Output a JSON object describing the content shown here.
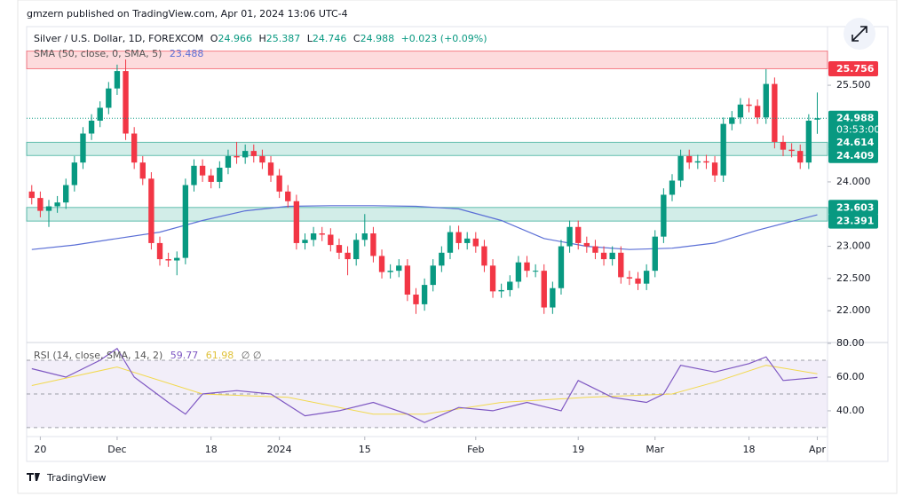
{
  "header": {
    "published": "gmzern published on TradingView.com, Apr 01, 2024 13:06 UTC-4",
    "symbol": "Silver / U.S. Dollar, 1D, FOREXCOM",
    "ohlc_prefixes": [
      "O",
      "H",
      "L",
      "C"
    ],
    "change": "+0.023 (+0.09%)",
    "sma_title": "SMA (50, close, 0, SMA, 5)",
    "rsi_title": "RSI (14, close, SMA, 14, 2)",
    "rsi_extra": "∅ ∅"
  },
  "footer": {
    "brand": "TradingView"
  },
  "chart_data": {
    "type": "candlestick",
    "open": [
      23.85,
      23.75,
      23.55,
      23.62,
      23.68,
      23.95,
      24.3,
      24.75,
      24.95,
      25.15,
      25.45,
      25.72,
      24.75,
      24.3,
      24.05,
      23.05,
      22.8,
      22.78,
      22.82,
      23.95,
      24.25,
      24.1,
      24.0,
      24.22,
      24.4,
      24.38,
      24.48,
      24.4,
      24.3,
      24.1,
      23.85,
      23.7,
      23.05,
      23.1,
      23.2,
      23.18,
      23.02,
      22.9,
      22.8,
      23.1,
      23.2,
      22.85,
      22.6,
      22.62,
      22.7,
      22.25,
      22.1,
      22.4,
      22.7,
      22.9,
      23.22,
      23.05,
      23.12,
      23.0,
      22.7,
      22.3,
      22.32,
      22.45,
      22.75,
      22.62,
      22.62,
      22.05,
      22.35,
      23.0,
      23.3,
      23.05,
      23.0,
      22.9,
      22.8,
      22.9,
      22.52,
      22.5,
      22.42,
      22.62,
      23.15,
      23.8,
      24.02,
      24.4,
      24.3,
      24.32,
      24.3,
      24.1,
      24.9,
      25.0,
      25.2,
      25.18,
      25.0,
      25.52,
      24.62,
      24.5,
      24.48,
      24.3,
      24.966
    ],
    "high": [
      23.95,
      23.85,
      23.72,
      23.78,
      24.05,
      24.4,
      24.85,
      25.05,
      25.25,
      25.55,
      25.82,
      25.9,
      24.85,
      24.4,
      24.15,
      23.15,
      22.9,
      22.92,
      24.05,
      24.35,
      24.35,
      24.2,
      24.32,
      24.5,
      24.62,
      24.58,
      24.58,
      24.5,
      24.4,
      24.2,
      23.95,
      23.8,
      23.2,
      23.3,
      23.3,
      23.28,
      23.12,
      23.0,
      23.2,
      23.5,
      23.3,
      22.95,
      22.72,
      22.8,
      22.8,
      22.35,
      22.5,
      22.8,
      23.0,
      23.32,
      23.32,
      23.22,
      23.22,
      23.1,
      22.8,
      22.42,
      22.55,
      22.85,
      22.85,
      22.72,
      22.72,
      22.45,
      23.1,
      23.4,
      23.4,
      23.15,
      23.1,
      23.0,
      23.0,
      23.0,
      22.62,
      22.6,
      22.72,
      23.25,
      23.9,
      24.12,
      24.5,
      24.5,
      24.42,
      24.42,
      24.4,
      25.0,
      25.1,
      25.3,
      25.3,
      25.28,
      25.75,
      25.62,
      24.72,
      24.6,
      24.58,
      25.05,
      25.387
    ],
    "low": [
      23.65,
      23.45,
      23.3,
      23.52,
      23.58,
      23.85,
      24.2,
      24.65,
      24.85,
      25.05,
      25.35,
      24.65,
      24.2,
      23.95,
      22.95,
      22.7,
      22.68,
      22.55,
      22.72,
      23.85,
      24.0,
      23.9,
      23.9,
      24.12,
      24.28,
      24.28,
      24.3,
      24.2,
      24.0,
      23.75,
      23.6,
      22.95,
      22.95,
      23.0,
      23.08,
      22.92,
      22.8,
      22.55,
      22.7,
      23.0,
      22.75,
      22.5,
      22.5,
      22.52,
      22.15,
      21.95,
      22.0,
      22.3,
      22.6,
      22.8,
      22.95,
      22.95,
      22.9,
      22.6,
      22.2,
      22.2,
      22.22,
      22.35,
      22.52,
      22.52,
      21.95,
      21.95,
      22.25,
      22.9,
      22.95,
      22.9,
      22.8,
      22.7,
      22.7,
      22.42,
      22.4,
      22.32,
      22.32,
      22.52,
      23.05,
      23.7,
      23.92,
      24.2,
      24.2,
      24.2,
      24.0,
      24.0,
      24.8,
      24.9,
      25.08,
      24.9,
      24.9,
      24.52,
      24.4,
      24.38,
      24.2,
      24.2,
      24.746
    ],
    "close": [
      23.75,
      23.55,
      23.62,
      23.68,
      23.95,
      24.3,
      24.75,
      24.95,
      25.15,
      25.45,
      25.72,
      24.75,
      24.3,
      24.05,
      23.05,
      22.8,
      22.78,
      22.82,
      23.95,
      24.25,
      24.1,
      24.0,
      24.22,
      24.4,
      24.38,
      24.48,
      24.4,
      24.3,
      24.1,
      23.85,
      23.7,
      23.05,
      23.1,
      23.2,
      23.18,
      23.02,
      22.9,
      22.8,
      23.1,
      23.2,
      22.85,
      22.6,
      22.62,
      22.7,
      22.25,
      22.1,
      22.4,
      22.7,
      22.9,
      23.22,
      23.05,
      23.12,
      23.0,
      22.7,
      22.3,
      22.32,
      22.45,
      22.75,
      22.62,
      22.62,
      22.05,
      22.35,
      23.0,
      23.3,
      23.05,
      23.0,
      22.9,
      22.8,
      22.9,
      22.52,
      22.5,
      22.42,
      22.62,
      23.15,
      23.8,
      24.02,
      24.4,
      24.3,
      24.32,
      24.3,
      24.1,
      24.9,
      25.0,
      25.2,
      25.18,
      25.0,
      25.52,
      24.62,
      24.5,
      24.48,
      24.3,
      24.95,
      24.988
    ],
    "up_color": "#089981",
    "down_color": "#f23645",
    "xlim": [
      -0.6,
      93.2
    ],
    "xticks": [
      {
        "value": 1,
        "label": "20"
      },
      {
        "value": 10,
        "label": "Dec"
      },
      {
        "value": 21,
        "label": "18"
      },
      {
        "value": 29,
        "label": "2024"
      },
      {
        "value": 39,
        "label": "15"
      },
      {
        "value": 52,
        "label": "Feb"
      },
      {
        "value": 64,
        "label": "19"
      },
      {
        "value": 73,
        "label": "Mar"
      },
      {
        "value": 84,
        "label": "18"
      },
      {
        "value": 92,
        "label": "Apr"
      }
    ],
    "ylim": [
      21.52,
      26.41
    ],
    "yticks": [
      {
        "value": 25.5,
        "label": "25.500"
      },
      {
        "value": 24,
        "label": "24.000"
      },
      {
        "value": 23,
        "label": "23.000"
      },
      {
        "value": 22.5,
        "label": "22.500"
      },
      {
        "value": 22,
        "label": "22.000"
      }
    ],
    "zones": [
      {
        "low": 25.756,
        "high": 26.03,
        "color": "#f23645"
      },
      {
        "low": 24.409,
        "high": 24.614,
        "color": "#089981"
      },
      {
        "low": 23.391,
        "high": 23.603,
        "color": "#089981"
      }
    ],
    "countdown": "03:53:00",
    "sma": {
      "color": "#5b6fd6",
      "x": [
        0,
        5,
        10,
        15,
        20,
        25,
        30,
        35,
        40,
        45,
        50,
        55,
        60,
        65,
        70,
        75,
        80,
        85,
        92
      ],
      "values": [
        22.95,
        23.02,
        23.12,
        23.22,
        23.4,
        23.55,
        23.62,
        23.63,
        23.63,
        23.62,
        23.58,
        23.4,
        23.12,
        23.0,
        22.95,
        22.97,
        23.05,
        23.25,
        23.488
      ]
    },
    "rsi": {
      "ylim": [
        24.7,
        80
      ],
      "yticks": [
        {
          "value": 80,
          "label": "80.00"
        },
        {
          "value": 60,
          "label": "60.00"
        },
        {
          "value": 40,
          "label": "40.00"
        }
      ],
      "levels": [
        70,
        50,
        30
      ],
      "color": "#7e57c2",
      "sma_color": "#f2d94e",
      "x": [
        0,
        4,
        8,
        10,
        12,
        16,
        18,
        20,
        24,
        28,
        32,
        36,
        40,
        44,
        46,
        50,
        54,
        58,
        62,
        64,
        68,
        72,
        74,
        76,
        80,
        84,
        86,
        88,
        92
      ],
      "values": [
        65,
        60,
        70,
        77,
        60,
        45,
        38,
        50,
        52,
        50,
        37,
        40,
        45,
        38,
        33,
        42,
        40,
        45,
        40,
        58,
        48,
        45,
        50,
        67,
        63,
        68,
        72,
        58,
        59.77
      ],
      "sma_x": [
        0,
        10,
        20,
        30,
        40,
        46,
        55,
        65,
        75,
        80,
        86,
        92
      ],
      "sma_values": [
        55,
        66,
        50,
        48,
        38,
        38,
        45,
        48,
        50,
        57,
        67,
        61.98
      ]
    }
  }
}
